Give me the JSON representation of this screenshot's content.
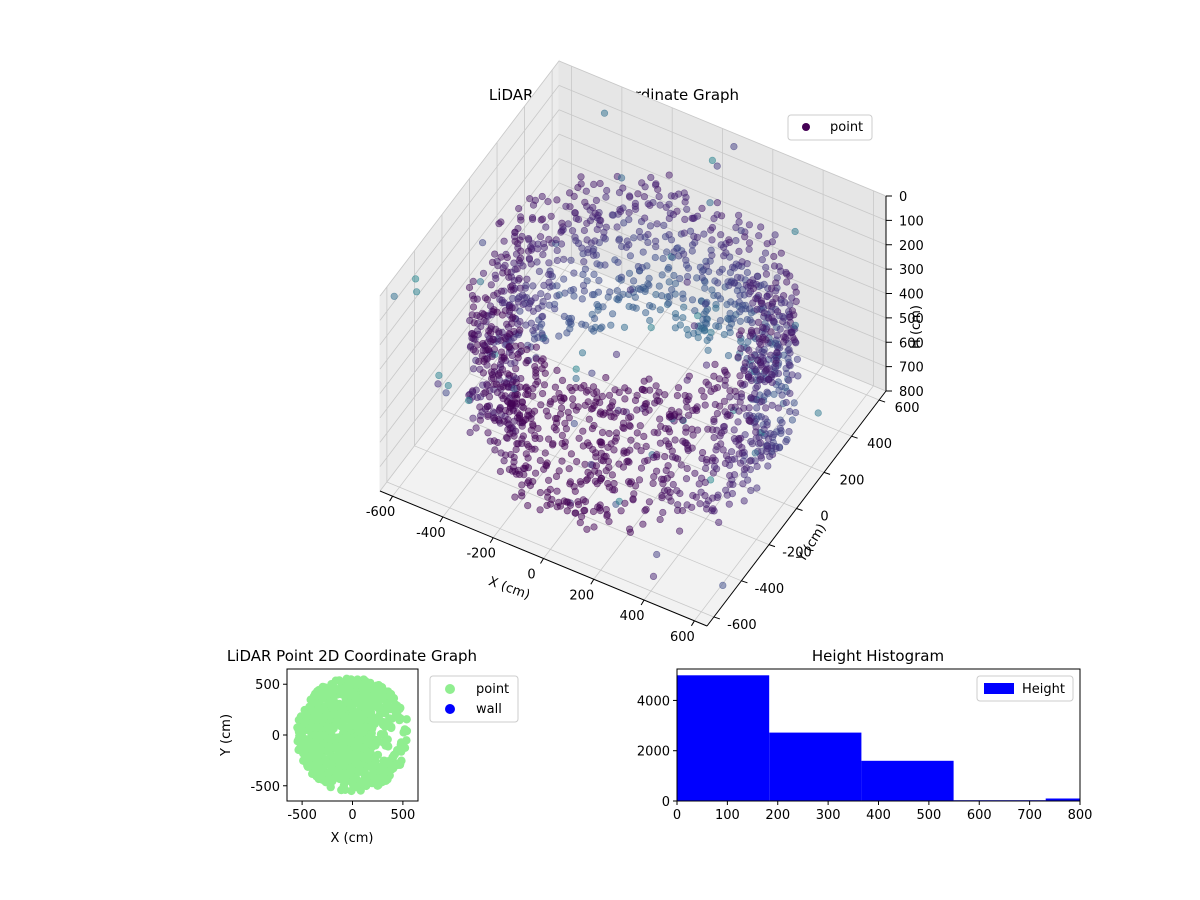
{
  "chart_data": [
    {
      "type": "scatter3d",
      "title": "LiDAR Point 3D Coordinate Graph",
      "xlabel": "X (cm)",
      "ylabel": "Y (cm)",
      "zlabel": "H (cm)",
      "xlim": [
        -650,
        650
      ],
      "ylim": [
        -650,
        650
      ],
      "zlim": [
        800,
        0
      ],
      "x_ticks": [
        -600,
        -400,
        -200,
        0,
        200,
        400,
        600
      ],
      "y_ticks": [
        -600,
        -400,
        -200,
        0,
        200,
        400,
        600
      ],
      "z_ticks": [
        0,
        100,
        200,
        300,
        400,
        500,
        600,
        700,
        800
      ],
      "z_inverted": true,
      "colormap": "viridis",
      "legend": {
        "placement": "top-right",
        "entries": [
          "point"
        ]
      },
      "series": [
        {
          "name": "point",
          "description": "ring-shaped point cloud, radius approx 550 cm, heights approx 150-700 cm, with sparse outliers"
        }
      ]
    },
    {
      "type": "scatter",
      "title": "LiDAR Point 2D Coordinate Graph",
      "xlabel": "X (cm)",
      "ylabel": "Y (cm)",
      "xlim": [
        -650,
        650
      ],
      "ylim": [
        -650,
        650
      ],
      "x_ticks": [
        -500,
        0,
        500
      ],
      "y_ticks": [
        -500,
        0,
        500
      ],
      "legend": {
        "placement": "outside-right",
        "entries": [
          "point",
          "wall"
        ]
      },
      "series": [
        {
          "name": "point",
          "color": "#90ee90"
        },
        {
          "name": "wall",
          "color": "#0000ff"
        }
      ]
    },
    {
      "type": "bar",
      "title": "Height Histogram",
      "xlim": [
        0,
        800
      ],
      "ylim": [
        0,
        5250
      ],
      "x_ticks": [
        0,
        100,
        200,
        300,
        400,
        500,
        600,
        700,
        800
      ],
      "y_ticks": [
        0,
        2000,
        4000
      ],
      "bin_edges": [
        0,
        183,
        366,
        549,
        732,
        800
      ],
      "values": [
        5000,
        2720,
        1600,
        30,
        100
      ],
      "color": "#0000ff",
      "legend": {
        "placement": "top-right",
        "entries": [
          "Height"
        ]
      },
      "series": [
        {
          "name": "Height"
        }
      ]
    }
  ]
}
